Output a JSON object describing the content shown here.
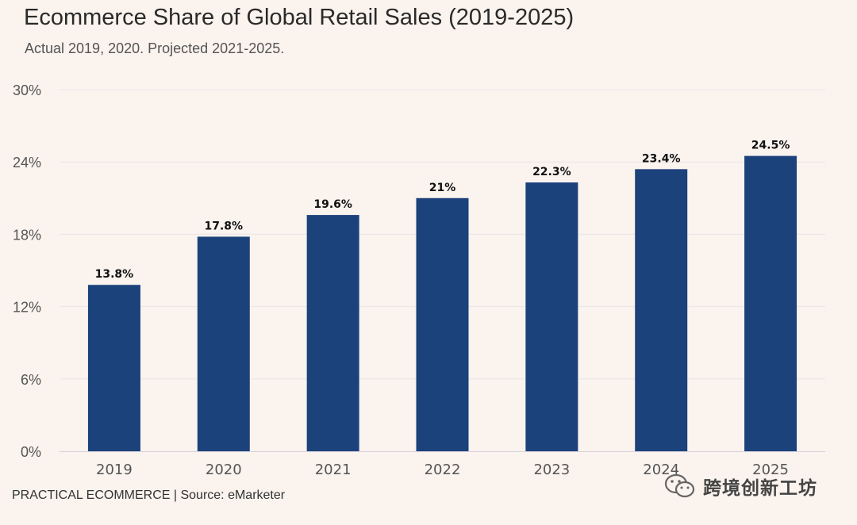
{
  "header": {
    "title": "Ecommerce Share of Global Retail Sales (2019-2025)",
    "subtitle": "Actual 2019, 2020. Projected 2021-2025."
  },
  "footer": {
    "source": "PRACTICAL ECOMMERCE | Source: eMarketer"
  },
  "watermark": {
    "text": "跨境创新工坊",
    "icon": "wechat-icon"
  },
  "colors": {
    "bar": "#1c427c",
    "background": "#faf3ee",
    "grid": "#e9e4e8"
  },
  "chart_data": {
    "type": "bar",
    "title": "Ecommerce Share of Global Retail Sales (2019-2025)",
    "subtitle": "Actual 2019, 2020. Projected 2021-2025.",
    "categories": [
      "2019",
      "2020",
      "2021",
      "2022",
      "2023",
      "2024",
      "2025"
    ],
    "values": [
      13.8,
      17.8,
      19.6,
      21,
      22.3,
      23.4,
      24.5
    ],
    "data_labels": [
      "13.8%",
      "17.8%",
      "19.6%",
      "21%",
      "22.3%",
      "23.4%",
      "24.5%"
    ],
    "ylim": [
      0,
      30
    ],
    "yticks": [
      0,
      6,
      12,
      18,
      24,
      30
    ],
    "ytick_labels": [
      "0%",
      "6%",
      "12%",
      "18%",
      "24%",
      "30%"
    ],
    "xlabel": "",
    "ylabel": "",
    "grid": true,
    "legend": "none"
  }
}
